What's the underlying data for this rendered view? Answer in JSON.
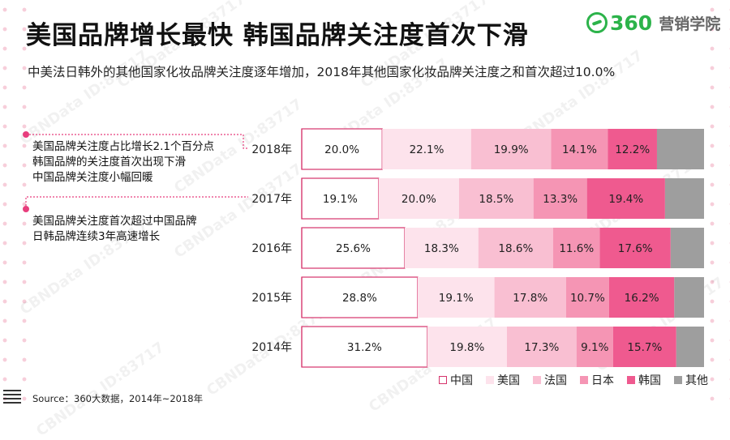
{
  "title": "美国品牌增长最快 韩国品牌关注度首次下滑",
  "logo": {
    "number": "360",
    "text": "营销学院",
    "color": "#2cb34a",
    "icon": "360-logo-icon"
  },
  "subtitle": "中美法日韩外的其他国家化妆品牌关注度逐年增加，2018年其他国家化妆品牌关注度之和首次超过10.0%",
  "notes": {
    "block1": [
      "美国品牌关注度占比增长2.1个百分点",
      "韩国品牌的关注度首次出现下滑",
      "中国品牌关注度小幅回暖"
    ],
    "block2": [
      "美国品牌关注度首次超过中国品牌",
      "日韩品牌连续3年高速增长"
    ]
  },
  "watermark": "CBNData ID:83717",
  "source": "Source：360大数据，2014年~2018年",
  "chart_data": {
    "type": "bar",
    "orientation": "horizontal-stacked-100",
    "categories": [
      "2018年",
      "2017年",
      "2016年",
      "2015年",
      "2014年"
    ],
    "series": [
      {
        "name": "中国",
        "color": "#ffffff",
        "border": "#d6336c",
        "values": [
          20.0,
          19.1,
          25.6,
          28.8,
          31.2
        ]
      },
      {
        "name": "美国",
        "color": "#fde3ec",
        "values": [
          22.1,
          20.0,
          18.3,
          19.1,
          19.8
        ]
      },
      {
        "name": "法国",
        "color": "#f9bfd2",
        "values": [
          19.9,
          18.5,
          18.6,
          17.8,
          17.3
        ]
      },
      {
        "name": "日本",
        "color": "#f595b4",
        "values": [
          14.1,
          13.3,
          11.6,
          10.7,
          9.1
        ]
      },
      {
        "name": "韩国",
        "color": "#ef5a8f",
        "values": [
          12.2,
          19.4,
          17.6,
          16.2,
          15.7
        ]
      },
      {
        "name": "其他",
        "color": "#9e9e9e",
        "values": [
          11.7,
          9.7,
          8.3,
          7.4,
          6.9
        ]
      }
    ],
    "labeled_series": [
      "中国",
      "美国",
      "法国",
      "日本",
      "韩国"
    ],
    "xlim": [
      0,
      100
    ],
    "legend": [
      "中国",
      "美国",
      "法国",
      "日本",
      "韩国",
      "其他"
    ],
    "legend_position": "bottom-right"
  }
}
